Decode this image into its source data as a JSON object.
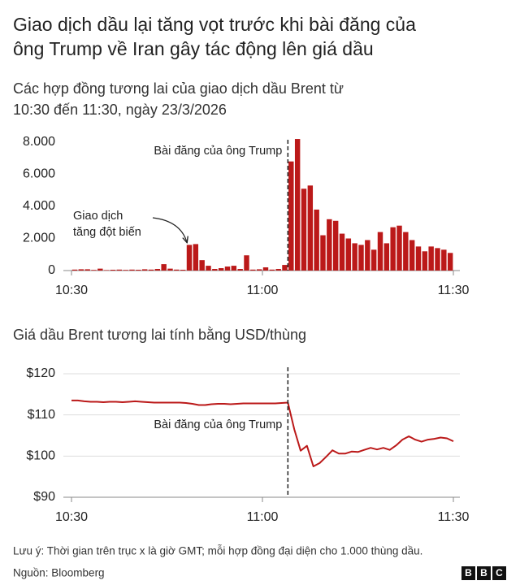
{
  "title": [
    "Giao dịch dầu lại tăng vọt trước khi bài đăng của",
    "ông Trump về Iran gây tác động lên giá dầu"
  ],
  "note": "Lưu ý: Thời gian trên trục x là giờ GMT; mỗi hợp đồng đại diện cho 1.000 thùng dầu.",
  "source": "Nguồn: Bloomberg",
  "logo": [
    "B",
    "B",
    "C"
  ],
  "chart_data": [
    {
      "type": "bar",
      "title": [
        "Các hợp đồng tương lai của giao dịch dầu Brent từ",
        "10:30 đến 11:30, ngày 23/3/2026"
      ],
      "color": "#bb1919",
      "x": [
        0,
        1,
        2,
        3,
        4,
        5,
        6,
        7,
        8,
        9,
        10,
        11,
        12,
        13,
        14,
        15,
        16,
        17,
        18,
        19,
        20,
        21,
        22,
        23,
        24,
        25,
        26,
        27,
        28,
        29,
        30,
        31,
        32,
        33,
        34,
        35,
        36,
        37,
        38,
        39,
        40,
        41,
        42,
        43,
        44,
        45,
        46,
        47,
        48,
        49,
        50,
        51,
        52,
        53,
        54,
        55,
        56,
        57,
        58,
        59
      ],
      "values": [
        60,
        80,
        80,
        40,
        120,
        30,
        50,
        60,
        40,
        60,
        50,
        80,
        60,
        100,
        400,
        120,
        60,
        50,
        1600,
        1650,
        650,
        300,
        100,
        150,
        250,
        300,
        100,
        950,
        60,
        80,
        200,
        60,
        100,
        350,
        6800,
        8200,
        5100,
        5300,
        3800,
        2200,
        3200,
        3100,
        2300,
        2000,
        1700,
        1600,
        1900,
        1300,
        2400,
        1700,
        2700,
        2800,
        2400,
        1900,
        1500,
        1200,
        1500,
        1400,
        1300,
        1100
      ],
      "xlim": [
        0,
        60
      ],
      "xticks": [
        {
          "value": 0,
          "label": "10:30"
        },
        {
          "value": 30,
          "label": "11:00"
        },
        {
          "value": 60,
          "label": "11:30"
        }
      ],
      "ylim": [
        0,
        8000
      ],
      "yticks": [
        0,
        {
          "value": 2000,
          "label": "2.000"
        },
        {
          "value": 4000,
          "label": "4.000"
        },
        {
          "value": 6000,
          "label": "6.000"
        },
        {
          "value": 8000,
          "label": "8.000"
        }
      ],
      "grid": false,
      "vline": {
        "x": 34,
        "label": "Bài đăng của ông Trump"
      },
      "annotation": {
        "text": [
          "Giao dịch",
          "tăng đột biến"
        ],
        "x": 18
      }
    },
    {
      "type": "line",
      "title": "Giá dầu Brent tương lai tính bằng USD/thùng",
      "color": "#bb1919",
      "x": [
        0,
        1,
        2,
        3,
        4,
        5,
        6,
        7,
        8,
        9,
        10,
        11,
        12,
        13,
        14,
        15,
        16,
        17,
        18,
        19,
        20,
        21,
        22,
        23,
        24,
        25,
        26,
        27,
        28,
        29,
        30,
        31,
        32,
        33,
        34,
        35,
        36,
        37,
        38,
        39,
        40,
        41,
        42,
        43,
        44,
        45,
        46,
        47,
        48,
        49,
        50,
        51,
        52,
        53,
        54,
        55,
        56,
        57,
        58,
        59,
        60
      ],
      "values": [
        113.5,
        113.5,
        113.3,
        113.2,
        113.2,
        113.1,
        113.2,
        113.2,
        113.1,
        113.2,
        113.3,
        113.2,
        113.1,
        113.0,
        113.0,
        113.0,
        113.0,
        113.0,
        112.9,
        112.7,
        112.4,
        112.4,
        112.6,
        112.7,
        112.7,
        112.6,
        112.7,
        112.8,
        112.8,
        112.8,
        112.8,
        112.8,
        112.8,
        112.9,
        113.0,
        106.5,
        101.3,
        102.5,
        97.5,
        98.3,
        99.8,
        101.4,
        100.6,
        100.6,
        101.1,
        101.0,
        101.5,
        102.0,
        101.6,
        102.0,
        101.5,
        102.6,
        104.0,
        104.8,
        104.0,
        103.5,
        104.0,
        104.2,
        104.5,
        104.3,
        103.6
      ],
      "xlim": [
        0,
        60
      ],
      "xticks": [
        {
          "value": 0,
          "label": "10:30"
        },
        {
          "value": 30,
          "label": "11:00"
        },
        {
          "value": 60,
          "label": "11:30"
        }
      ],
      "ylim": [
        90,
        120
      ],
      "yticks": [
        {
          "value": 90,
          "label": "$90"
        },
        {
          "value": 100,
          "label": "$100"
        },
        {
          "value": 110,
          "label": "$110"
        },
        {
          "value": 120,
          "label": "$120"
        }
      ],
      "grid": true,
      "vline": {
        "x": 34,
        "label": "Bài đăng của ông Trump"
      }
    }
  ]
}
